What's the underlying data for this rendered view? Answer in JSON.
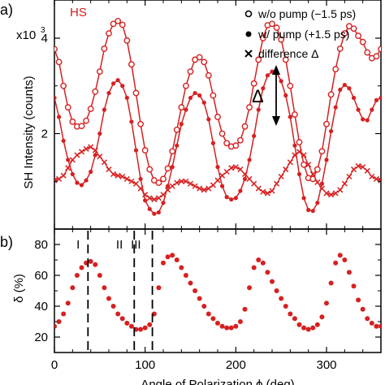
{
  "chart_data": [
    {
      "type": "line",
      "panel_label": "a)",
      "xlim": [
        0,
        360
      ],
      "ylim": [
        0,
        4.8
      ],
      "ylabel": "SH Intensity (counts)",
      "y_scale_note": "x10",
      "y_scale_exp": "3",
      "x_ticks": [
        0,
        100,
        200,
        300
      ],
      "y_ticks": [
        2,
        4
      ],
      "y_tick_labels": [
        "2",
        "4"
      ],
      "sample_label": "HS",
      "legend": [
        {
          "label": "w/o pump (−1.5 ps)",
          "marker": "open-circle"
        },
        {
          "label": "w/ pump (+1.5 ps)",
          "marker": "filled-circle"
        },
        {
          "label": "difference Δ",
          "marker": "cross"
        }
      ],
      "annotation": "Δ",
      "color": "#d62020",
      "series": [
        {
          "name": "w/o pump (−1.5 ps)",
          "x": [
            0,
            5,
            10,
            15,
            20,
            25,
            30,
            35,
            40,
            45,
            50,
            55,
            60,
            65,
            70,
            75,
            80,
            85,
            90,
            95,
            100,
            105,
            110,
            115,
            120,
            125,
            130,
            135,
            140,
            145,
            150,
            155,
            160,
            165,
            170,
            175,
            180,
            185,
            190,
            195,
            200,
            205,
            210,
            215,
            220,
            225,
            230,
            235,
            240,
            245,
            250,
            255,
            260,
            265,
            270,
            275,
            280,
            285,
            290,
            295,
            300,
            305,
            310,
            315,
            320,
            325,
            330,
            335,
            340,
            345,
            350,
            355,
            360
          ],
          "y": [
            3.77,
            3.5,
            3.0,
            2.55,
            2.25,
            2.15,
            2.16,
            2.27,
            2.52,
            2.88,
            3.3,
            3.78,
            4.1,
            4.3,
            4.36,
            4.28,
            3.95,
            3.45,
            2.85,
            2.2,
            1.65,
            1.25,
            1.02,
            0.97,
            1.05,
            1.27,
            1.63,
            2.08,
            2.55,
            3.0,
            3.3,
            3.55,
            3.6,
            3.5,
            3.22,
            2.8,
            2.35,
            2.0,
            1.8,
            1.73,
            1.75,
            1.86,
            2.15,
            2.55,
            3.05,
            3.55,
            4.0,
            4.27,
            4.3,
            4.22,
            3.97,
            3.55,
            3.0,
            2.4,
            1.82,
            1.35,
            1.07,
            1.05,
            1.25,
            1.63,
            2.2,
            2.82,
            3.35,
            3.78,
            4.1,
            4.25,
            4.2,
            4.05,
            3.92,
            3.7,
            3.58,
            3.62,
            3.77
          ]
        },
        {
          "name": "w/ pump (+1.5 ps)",
          "x": [
            0,
            5,
            10,
            15,
            20,
            25,
            30,
            35,
            40,
            45,
            50,
            55,
            60,
            65,
            70,
            75,
            80,
            85,
            90,
            95,
            100,
            105,
            110,
            115,
            120,
            125,
            130,
            135,
            140,
            145,
            150,
            155,
            160,
            165,
            170,
            175,
            180,
            185,
            190,
            195,
            200,
            205,
            210,
            215,
            220,
            225,
            230,
            235,
            240,
            245,
            250,
            255,
            260,
            265,
            270,
            275,
            280,
            285,
            290,
            295,
            300,
            305,
            310,
            315,
            320,
            325,
            330,
            335,
            340,
            345,
            350,
            355,
            360
          ],
          "y": [
            2.75,
            2.35,
            1.85,
            1.45,
            1.15,
            0.97,
            0.92,
            1.02,
            1.2,
            1.55,
            2.0,
            2.5,
            2.85,
            3.05,
            3.12,
            3.0,
            2.75,
            2.25,
            1.65,
            1.05,
            0.6,
            0.42,
            0.32,
            0.35,
            0.55,
            0.9,
            1.3,
            1.75,
            2.2,
            2.5,
            2.75,
            2.85,
            2.8,
            2.65,
            2.3,
            1.8,
            1.3,
            0.9,
            0.67,
            0.62,
            0.65,
            0.8,
            1.05,
            1.45,
            1.95,
            2.5,
            2.95,
            3.22,
            3.3,
            3.28,
            3.1,
            2.8,
            2.35,
            1.75,
            1.15,
            0.65,
            0.4,
            0.38,
            0.55,
            0.95,
            1.45,
            2.05,
            2.55,
            2.92,
            3.02,
            2.95,
            2.75,
            2.5,
            2.3,
            2.28,
            2.5,
            2.7,
            2.75
          ]
        },
        {
          "name": "difference Δ",
          "x": [
            0,
            5,
            10,
            15,
            20,
            25,
            30,
            35,
            40,
            45,
            50,
            55,
            60,
            65,
            70,
            75,
            80,
            85,
            90,
            95,
            100,
            105,
            110,
            115,
            120,
            125,
            130,
            135,
            140,
            145,
            150,
            155,
            160,
            165,
            170,
            175,
            180,
            185,
            190,
            195,
            200,
            205,
            210,
            215,
            220,
            225,
            230,
            235,
            240,
            245,
            250,
            255,
            260,
            265,
            270,
            275,
            280,
            285,
            290,
            295,
            300,
            305,
            310,
            315,
            320,
            325,
            330,
            335,
            340,
            345,
            350,
            355,
            360
          ],
          "y": [
            1.02,
            1.05,
            1.12,
            1.28,
            1.45,
            1.55,
            1.62,
            1.68,
            1.72,
            1.65,
            1.52,
            1.4,
            1.25,
            1.15,
            1.12,
            1.1,
            1.05,
            1.0,
            0.95,
            0.85,
            0.72,
            0.65,
            0.62,
            0.65,
            0.72,
            0.82,
            0.9,
            0.97,
            1.0,
            1.0,
            0.95,
            0.9,
            0.85,
            0.82,
            0.85,
            0.92,
            1.02,
            1.12,
            1.2,
            1.28,
            1.3,
            1.25,
            1.15,
            1.05,
            0.95,
            0.85,
            0.78,
            0.75,
            0.8,
            0.95,
            1.1,
            1.25,
            1.4,
            1.55,
            1.62,
            1.55,
            1.35,
            1.15,
            0.98,
            0.85,
            0.75,
            0.72,
            0.75,
            0.82,
            0.95,
            1.1,
            1.25,
            1.32,
            1.3,
            1.22,
            1.1,
            1.05,
            1.02
          ]
        }
      ]
    },
    {
      "type": "scatter",
      "panel_label": "b)",
      "xlim": [
        0,
        360
      ],
      "ylim": [
        10,
        90
      ],
      "xlabel": "Angle of Polarization ϕ (deg)",
      "ylabel": "δ (%)",
      "x_ticks": [
        0,
        100,
        200,
        300
      ],
      "y_ticks": [
        20,
        40,
        60,
        80
      ],
      "color": "#d62020",
      "vlines": [
        {
          "x": 37,
          "label": "I"
        },
        {
          "x": 88,
          "label": "II"
        },
        {
          "x": 108,
          "label": "III"
        }
      ],
      "series": [
        {
          "name": "δ",
          "x": [
            0,
            5,
            10,
            15,
            20,
            25,
            30,
            35,
            40,
            45,
            50,
            55,
            60,
            65,
            70,
            75,
            80,
            85,
            90,
            95,
            100,
            105,
            110,
            115,
            120,
            125,
            130,
            135,
            140,
            145,
            150,
            155,
            160,
            165,
            170,
            175,
            180,
            185,
            190,
            195,
            200,
            205,
            210,
            215,
            220,
            225,
            230,
            235,
            240,
            245,
            250,
            255,
            260,
            265,
            270,
            275,
            280,
            285,
            290,
            295,
            300,
            305,
            310,
            315,
            320,
            325,
            330,
            335,
            340,
            345,
            350,
            355,
            360
          ],
          "y": [
            27,
            30,
            35,
            42,
            52,
            60,
            65,
            68,
            69,
            67,
            60,
            52,
            45,
            40,
            35,
            32,
            29,
            27,
            25,
            25,
            26,
            28,
            35,
            52,
            68,
            72,
            73,
            70,
            65,
            60,
            55,
            50,
            45,
            40,
            35,
            32,
            29,
            27,
            26,
            26,
            27,
            30,
            38,
            52,
            65,
            70,
            68,
            62,
            56,
            50,
            45,
            40,
            35,
            32,
            28,
            26,
            25,
            26,
            28,
            33,
            42,
            55,
            68,
            73,
            70,
            62,
            53,
            44,
            38,
            32,
            29,
            27,
            27
          ]
        }
      ]
    }
  ]
}
